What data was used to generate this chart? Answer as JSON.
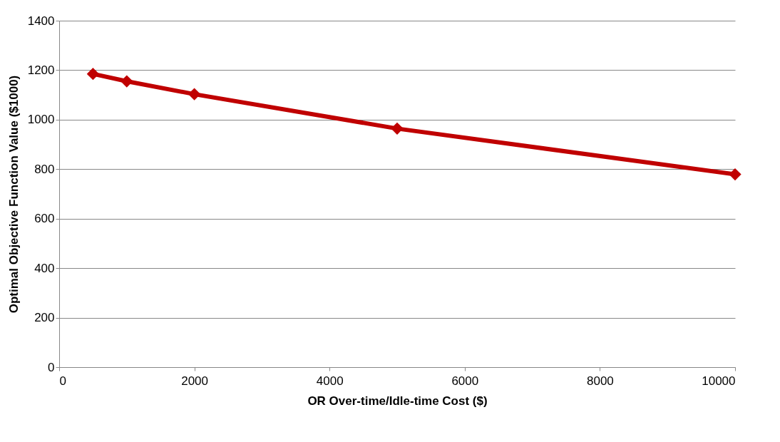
{
  "chart_data": {
    "type": "line",
    "xlabel": "OR Over-time/Idle-time Cost ($)",
    "ylabel": "Optimal Objective Function Value ($1000)",
    "x": [
      500,
      1000,
      2000,
      5000,
      10000
    ],
    "series": [
      {
        "color": "#c00000",
        "values": [
          1185,
          1155,
          1103,
          964,
          779
        ]
      }
    ],
    "xlim": [
      0,
      10000
    ],
    "xticks": [
      0,
      2000,
      4000,
      6000,
      8000,
      10000
    ],
    "ylim": [
      0,
      1400
    ],
    "yticks": [
      0,
      200,
      400,
      600,
      800,
      1000,
      1200,
      1400
    ],
    "grid": "y",
    "marker": "diamond",
    "line_style": "solid"
  }
}
